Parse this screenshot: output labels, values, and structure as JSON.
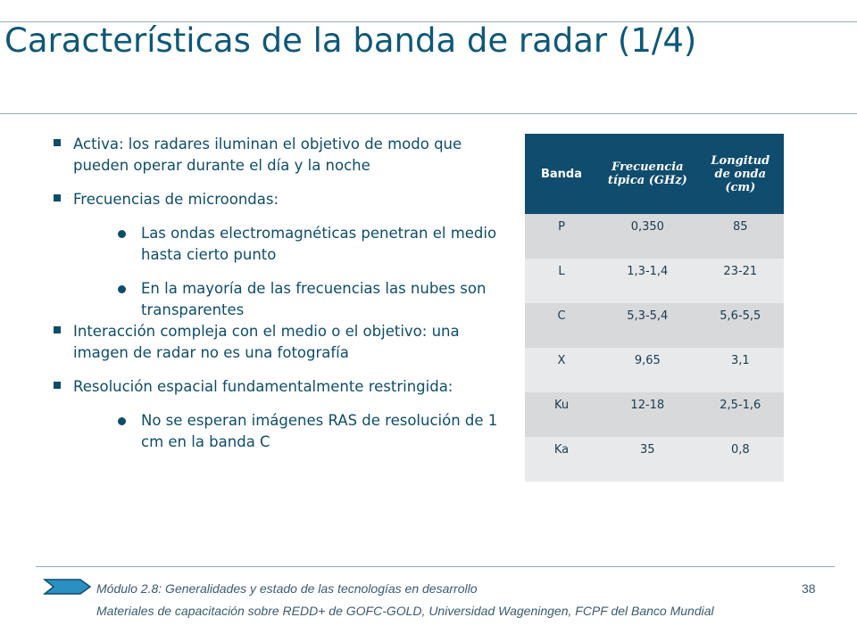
{
  "header": {
    "title": "Características de la banda de radar (1/4)"
  },
  "body": {
    "items": [
      {
        "text": "Activa: los radares iluminan el objetivo de modo que pueden operar durante el día y la noche",
        "sub": []
      },
      {
        "text": "Frecuencias de microondas:",
        "sub": [
          "Las ondas electromagnéticas penetran el medio hasta cierto punto",
          "En la mayoría de las frecuencias las nubes son transparentes"
        ]
      },
      {
        "text": "Interacción compleja con el medio o el objetivo: una imagen de radar no es una fotografía",
        "sub": []
      },
      {
        "text": "Resolución espacial fundamentalmente restringida:",
        "sub": [
          "No se esperan imágenes RAS de resolución de 1 cm en la banda C"
        ]
      }
    ]
  },
  "table": {
    "columns": [
      "Banda",
      "Frecuencia típica (GHz)",
      "Longitud de onda (cm)"
    ],
    "rows": [
      [
        "P",
        "0,350",
        "85"
      ],
      [
        "L",
        "1,3-1,4",
        "23-21"
      ],
      [
        "C",
        "5,3-5,4",
        "5,6-5,5"
      ],
      [
        "X",
        "9,65",
        "3,1"
      ],
      [
        "Ku",
        "12-18",
        "2,5-1,6"
      ],
      [
        "Ka",
        "35",
        "0,8"
      ]
    ]
  },
  "footer": {
    "module": "Módulo 2.8: Generalidades y estado de las tecnologías en desarrollo",
    "page_number": "38",
    "credits": "Materiales de capacitación sobre REDD+ de GOFC-GOLD, Universidad Wageningen, FCPF del Banco Mundial"
  }
}
